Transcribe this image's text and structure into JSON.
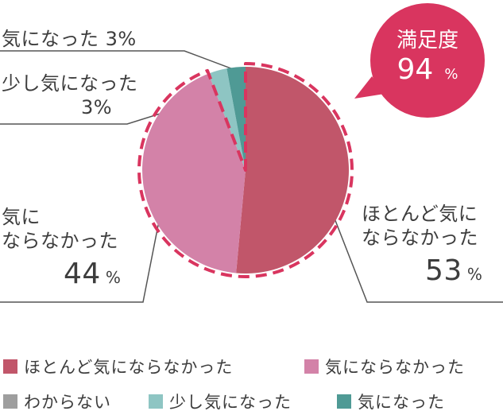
{
  "chart_data": {
    "type": "pie",
    "categories": [
      "ほとんど気にならなかった",
      "気にならなかった",
      "わからない",
      "少し気になった",
      "気になった"
    ],
    "values": [
      53,
      44,
      0,
      3,
      3
    ],
    "colors": [
      "#c1566a",
      "#d382a8",
      "#9e9e9e",
      "#8ec5c3",
      "#4f9a95"
    ],
    "unit": "%",
    "labels": {
      "hotondo": {
        "line1": "ほとんど気に",
        "line2": "ならなかった",
        "pct": "53",
        "unit": "%"
      },
      "ki_ni_naranakatta": {
        "line1": "気に",
        "line2": "ならなかった",
        "pct": "44",
        "unit": "%"
      },
      "sukoshi": {
        "line1": "少し気になった",
        "line2": "3%"
      },
      "kininatta": {
        "text": "気になった 3%"
      }
    },
    "legend": [
      "ほとんど気にならなかった",
      "気にならなかった",
      "わからない",
      "少し気になった",
      "気になった"
    ],
    "legend_placement": "bottom"
  },
  "bubble": {
    "title": "満足度",
    "value": "94",
    "unit": "%",
    "color": "#d9355f"
  },
  "highlight_color": "#d9355f",
  "leader_color": "#555555"
}
